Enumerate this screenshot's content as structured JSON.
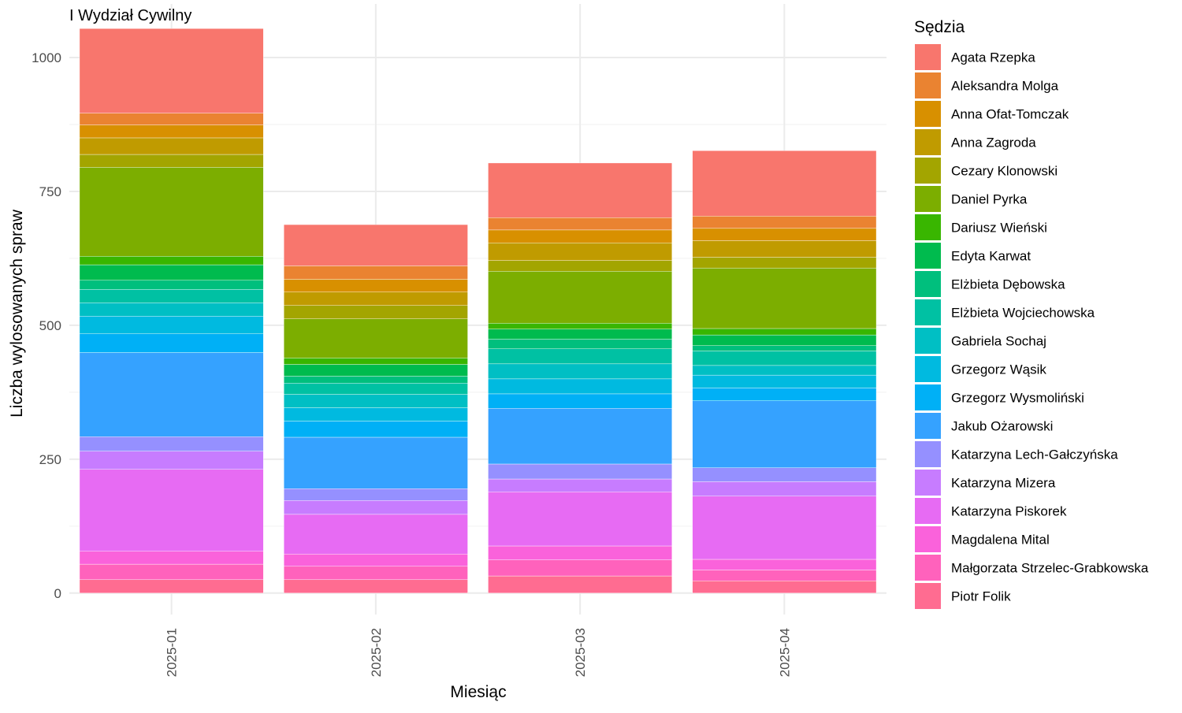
{
  "chart_data": {
    "type": "bar",
    "stacked": true,
    "title": "I Wydział Cywilny",
    "xlabel": "Miesiąc",
    "ylabel": "Liczba wylosowanych spraw",
    "ylim": [
      -40,
      1100
    ],
    "yticks": [
      0,
      250,
      500,
      750,
      1000
    ],
    "grid": true,
    "legend_title": "Sędzia",
    "legend_position": "right",
    "categories": [
      "2025-01",
      "2025-02",
      "2025-03",
      "2025-04"
    ],
    "series": [
      {
        "name": "Agata Rzepka",
        "color": "#F8766D",
        "values": [
          158,
          77,
          102,
          122
        ]
      },
      {
        "name": "Aleksandra Molga",
        "color": "#EA8331",
        "values": [
          22,
          25,
          23,
          23
        ]
      },
      {
        "name": "Anna Ofat-Tomczak",
        "color": "#D89000",
        "values": [
          24,
          24,
          24,
          23
        ]
      },
      {
        "name": "Anna Zagroda",
        "color": "#C09B00",
        "values": [
          31,
          25,
          33,
          31
        ]
      },
      {
        "name": "Cezary Klonowski",
        "color": "#A3A500",
        "values": [
          24,
          25,
          20,
          20
        ]
      },
      {
        "name": "Daniel Pyrka",
        "color": "#7CAE00",
        "values": [
          166,
          73,
          97,
          113
        ]
      },
      {
        "name": "Dariusz Wieński",
        "color": "#39B600",
        "values": [
          16,
          12,
          11,
          12
        ]
      },
      {
        "name": "Edyta Karwat",
        "color": "#00BB4E",
        "values": [
          29,
          22,
          19,
          20
        ]
      },
      {
        "name": "Elżbieta Dębowska",
        "color": "#00BF7D",
        "values": [
          17,
          13,
          18,
          10
        ]
      },
      {
        "name": "Elżbieta Wojciechowska",
        "color": "#00C1A3",
        "values": [
          25,
          21,
          28,
          27
        ]
      },
      {
        "name": "Gabriela Sochaj",
        "color": "#00BFC4",
        "values": [
          25,
          25,
          28,
          18
        ]
      },
      {
        "name": "Grzegorz Wąsik",
        "color": "#00BAE0",
        "values": [
          33,
          25,
          28,
          24
        ]
      },
      {
        "name": "Grzegorz Wysmoliński",
        "color": "#00B0F6",
        "values": [
          35,
          30,
          27,
          24
        ]
      },
      {
        "name": "Jakub Ożarowski",
        "color": "#35A2FF",
        "values": [
          157,
          96,
          104,
          125
        ]
      },
      {
        "name": "Katarzyna Lech-Gałczyńska",
        "color": "#9590FF",
        "values": [
          27,
          22,
          28,
          26
        ]
      },
      {
        "name": "Katarzyna Mizera",
        "color": "#C77CFF",
        "values": [
          34,
          26,
          24,
          27
        ]
      },
      {
        "name": "Katarzyna Piskorek",
        "color": "#E76BF3",
        "values": [
          153,
          74,
          101,
          118
        ]
      },
      {
        "name": "Magdalena Mital",
        "color": "#FA62DB",
        "values": [
          24,
          23,
          26,
          20
        ]
      },
      {
        "name": "Małgorzata Strzelec-Grabkowska",
        "color": "#FF62BC",
        "values": [
          29,
          25,
          30,
          20
        ]
      },
      {
        "name": "Piotr Folik",
        "color": "#FF6C91",
        "values": [
          25,
          25,
          32,
          23
        ]
      }
    ]
  }
}
